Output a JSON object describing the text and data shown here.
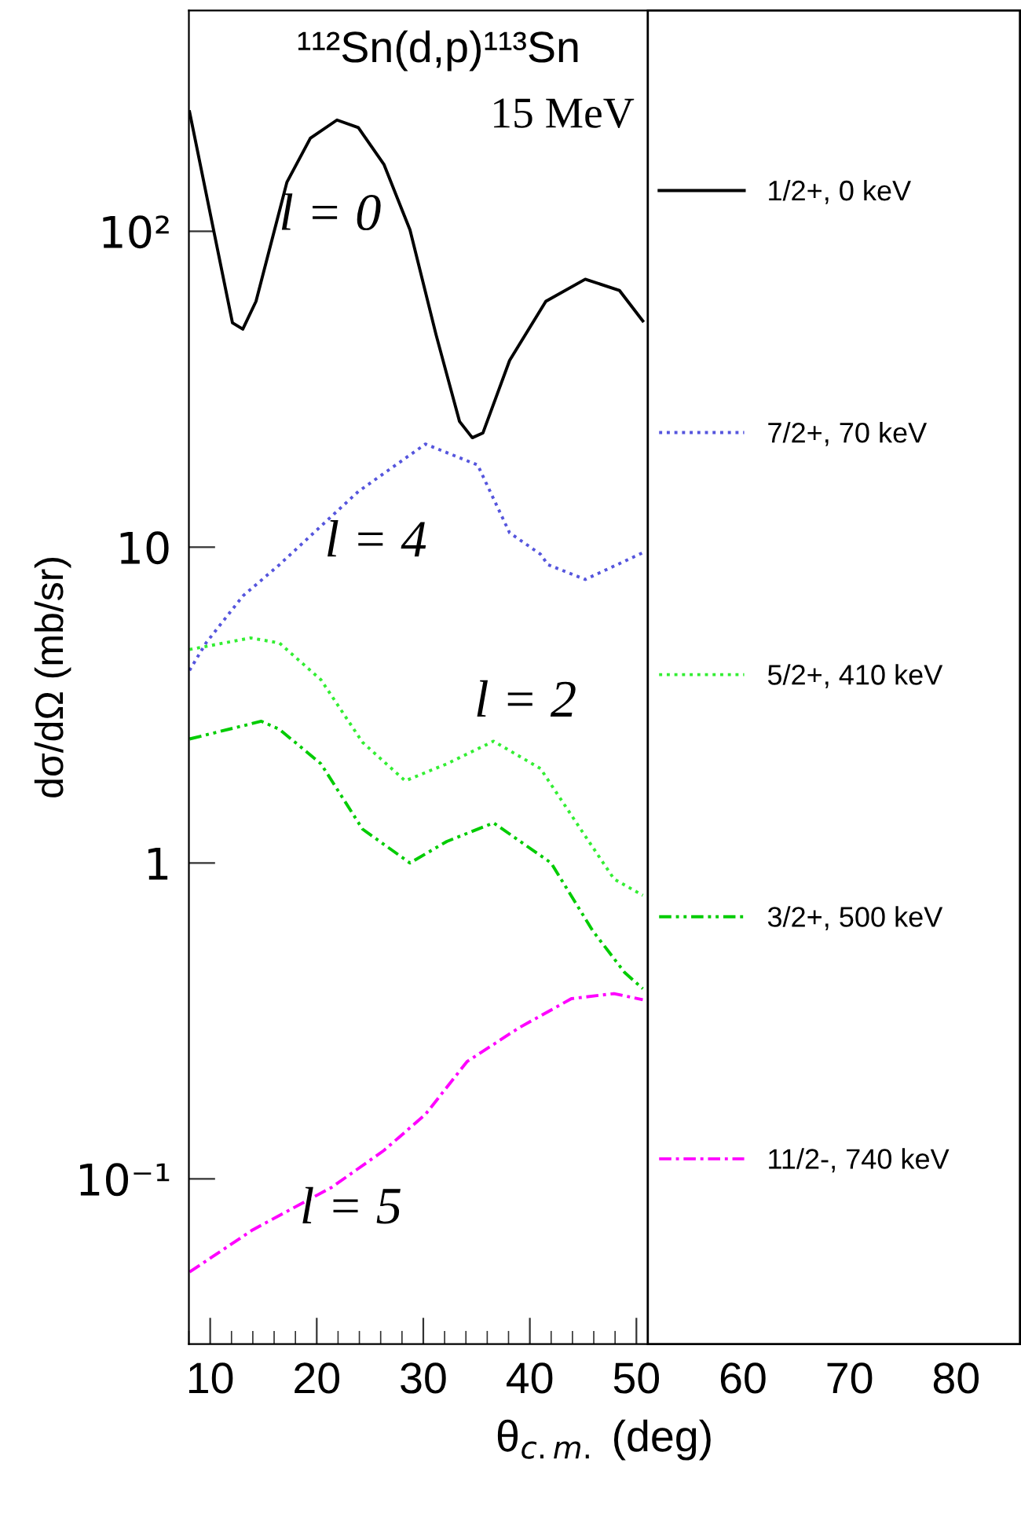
{
  "chart_data": {
    "type": "line",
    "title": "¹¹²Sn(d,p)¹¹³Sn",
    "subtitle": "15 MeV",
    "xlabel": "θ$_{c.m.}$ (deg)",
    "ylabel": "dσ/dΩ (mb/sr)",
    "xlim": [
      8,
      86
    ],
    "ylim": [
      0.03,
      500
    ],
    "log": "y",
    "grid": false,
    "legend": "right",
    "xticks": [
      10,
      20,
      30,
      40,
      50,
      60,
      70,
      80
    ],
    "yticks": [
      {
        "value": 0.1,
        "label": "10⁻¹"
      },
      1,
      10,
      {
        "value": 100,
        "label": "10²"
      }
    ],
    "annotations": [
      "l = 0",
      "l = 4",
      "l = 2",
      "l = 5"
    ],
    "series": [
      {
        "name": "1/2+, 0 keV",
        "color": "#000000",
        "line_style": "solid",
        "x": [
          8.06,
          12.09,
          13.06,
          14.3,
          17.2,
          19.4,
          21.9,
          23.9,
          26.3,
          28.75,
          31.2,
          33.4,
          34.6,
          35.6,
          38.1,
          41.5,
          45.2,
          48.4,
          50.6
        ],
        "values": [
          239,
          51.3,
          49,
          60,
          143,
          197,
          225,
          213,
          163,
          101,
          47,
          25,
          22.2,
          23,
          39,
          60,
          70.5,
          65,
          52
        ]
      },
      {
        "name": "7/2+, 70 keV",
        "color": "#5555dd",
        "line_style": "dotted",
        "x": [
          8.06,
          9.6,
          13.06,
          16.5,
          23.9,
          30.2,
          35.1,
          38.1,
          41.0,
          41.7,
          45.2,
          50.6
        ],
        "values": [
          4.07,
          4.97,
          7.0,
          8.8,
          15,
          21.2,
          18.2,
          11.1,
          9.5,
          8.8,
          7.9,
          9.6
        ]
      },
      {
        "name": "5/2+, 410 keV",
        "color": "#33ee33",
        "line_style": "dotted",
        "x": [
          8.06,
          13.8,
          16.5,
          20.4,
          24.3,
          28.3,
          32.2,
          36.6,
          41.0,
          44.9,
          47.9,
          50.6
        ],
        "values": [
          4.74,
          5.16,
          4.97,
          3.8,
          2.41,
          1.82,
          2.06,
          2.43,
          1.99,
          1.26,
          0.89,
          0.79
        ]
      },
      {
        "name": "3/2+, 500 keV",
        "color": "#00cc00",
        "line_style": "dashdotdot",
        "x": [
          8.06,
          14.8,
          16.5,
          20.4,
          24.3,
          28.75,
          32.2,
          36.6,
          42.0,
          45.9,
          48.9,
          50.6
        ],
        "values": [
          2.47,
          2.81,
          2.65,
          2.06,
          1.28,
          1.0,
          1.17,
          1.34,
          1.0,
          0.61,
          0.45,
          0.4
        ]
      },
      {
        "name": "11/2-, 740 keV",
        "color": "#ff00ff",
        "line_style": "dashdot",
        "x": [
          8.06,
          14.0,
          21.4,
          26.3,
          30.2,
          34.1,
          39.0,
          43.9,
          47.9,
          50.6
        ],
        "values": [
          0.0507,
          0.069,
          0.094,
          0.123,
          0.16,
          0.235,
          0.301,
          0.372,
          0.386,
          0.369
        ]
      }
    ]
  }
}
